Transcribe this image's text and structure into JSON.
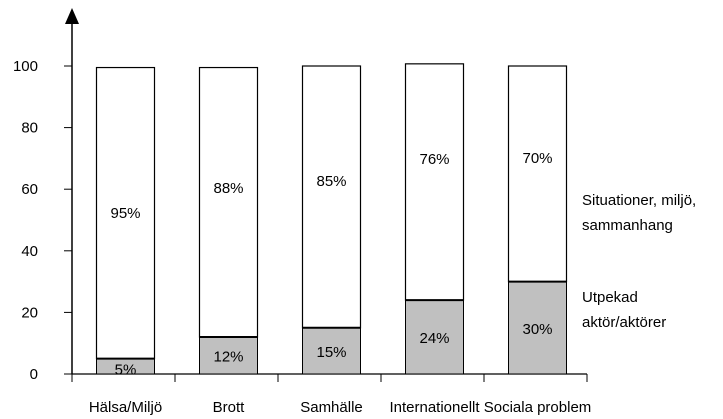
{
  "chart_data": {
    "type": "bar",
    "stacked": true,
    "categories": [
      "Hälsa/Miljö",
      "Brott",
      "Samhälle",
      "Internationellt",
      "Sociala problem"
    ],
    "series": [
      {
        "values": [
          5,
          12,
          15,
          24,
          30
        ],
        "labels": [
          "5%",
          "12%",
          "15%",
          "24%",
          "30%"
        ],
        "color": "#c0c0c0"
      },
      {
        "values": [
          95,
          88,
          85,
          76,
          70
        ],
        "labels": [
          "95%",
          "88%",
          "85%",
          "76%",
          "70%"
        ],
        "color": "#ffffff"
      }
    ],
    "y_ticks": [
      "0",
      "20",
      "40",
      "60",
      "80",
      "100"
    ],
    "ylim": [
      0,
      100
    ],
    "grid": false,
    "legend": {
      "placement": "right",
      "top_lines": [
        "Situationer, miljö,",
        "sammanhang"
      ],
      "bottom_lines": [
        "Utpekad",
        "aktör/aktörer"
      ]
    }
  }
}
